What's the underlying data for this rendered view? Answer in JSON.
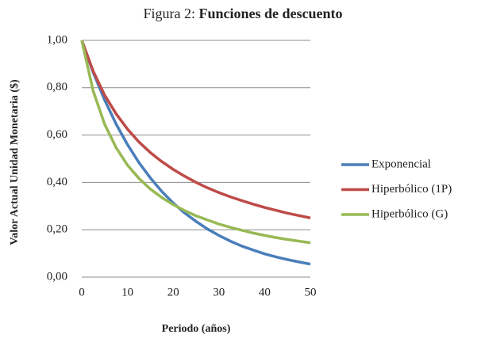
{
  "chart_data": {
    "type": "line",
    "figure_label": "Figura 2:",
    "title": "Funciones de descuento",
    "xlabel": "Periodo (años)",
    "ylabel": "Valor Actual Unidad Monetaria ($)",
    "x": [
      0,
      2.5,
      5,
      7.5,
      10,
      12.5,
      15,
      17.5,
      20,
      22.5,
      25,
      27.5,
      30,
      32.5,
      35,
      37.5,
      40,
      42.5,
      45,
      47.5,
      50
    ],
    "series": [
      {
        "name": "Exponencial",
        "color": "#4a7ebb",
        "values": [
          1,
          0.865,
          0.748,
          0.647,
          0.56,
          0.484,
          0.419,
          0.362,
          0.313,
          0.271,
          0.235,
          0.203,
          0.176,
          0.152,
          0.131,
          0.114,
          0.098,
          0.085,
          0.074,
          0.064,
          0.055
        ]
      },
      {
        "name": "Hiperbólico (1P)",
        "color": "#be4b48",
        "values": [
          1,
          0.87,
          0.769,
          0.69,
          0.625,
          0.571,
          0.526,
          0.488,
          0.455,
          0.426,
          0.4,
          0.377,
          0.357,
          0.339,
          0.323,
          0.308,
          0.294,
          0.282,
          0.27,
          0.26,
          0.25
        ]
      },
      {
        "name": "Hiperbólico (G)",
        "color": "#98b954",
        "values": [
          1,
          0.786,
          0.646,
          0.547,
          0.473,
          0.417,
          0.372,
          0.336,
          0.306,
          0.281,
          0.259,
          0.241,
          0.224,
          0.21,
          0.198,
          0.186,
          0.176,
          0.167,
          0.159,
          0.152,
          0.145
        ]
      }
    ],
    "xlim": [
      0,
      50
    ],
    "xticks": [
      0,
      10,
      20,
      30,
      40,
      50
    ],
    "ylim": [
      0,
      1
    ],
    "yticks": [
      {
        "value": 0,
        "label": "0,00"
      },
      {
        "value": 0.2,
        "label": "0,20"
      },
      {
        "value": 0.4,
        "label": "0,40"
      },
      {
        "value": 0.6,
        "label": "0,60"
      },
      {
        "value": 0.8,
        "label": "0,80"
      },
      {
        "value": 1,
        "label": "1,00"
      }
    ],
    "grid": true,
    "legend": "right"
  }
}
